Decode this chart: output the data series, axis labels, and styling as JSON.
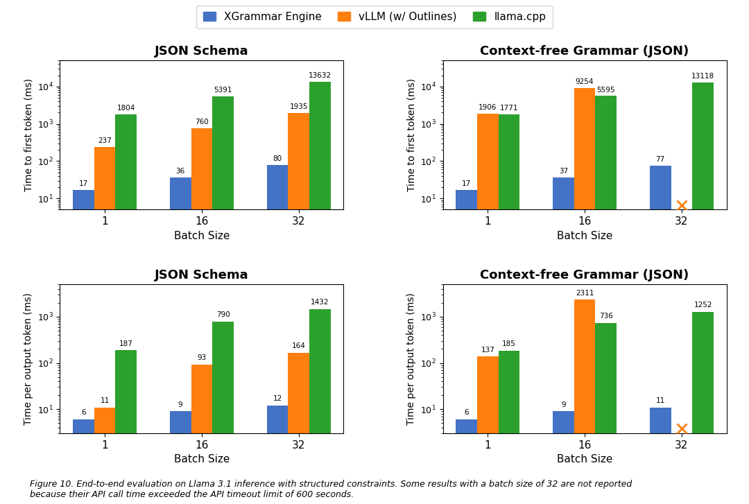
{
  "colors": {
    "xgrammar": "#4472C4",
    "vllm": "#FF7F0E",
    "llama": "#2CA02C"
  },
  "legend_labels": [
    "XGrammar Engine",
    "vLLM (w/ Outlines)",
    "llama.cpp"
  ],
  "batch_sizes": [
    1,
    16,
    32
  ],
  "batch_labels": [
    "1",
    "16",
    "32"
  ],
  "subplots": [
    {
      "title": "JSON Schema",
      "ylabel": "Time to first token (ms)",
      "row": 0,
      "col": 0,
      "xgrammar": [
        17,
        36,
        80
      ],
      "vllm": [
        237,
        760,
        1935
      ],
      "llama": [
        1804,
        5391,
        13632
      ],
      "vllm_missing": [
        false,
        false,
        false
      ],
      "llama_missing": [
        false,
        false,
        false
      ],
      "ylim": [
        5,
        50000
      ]
    },
    {
      "title": "Context-free Grammar (JSON)",
      "ylabel": "Time to first token (ms)",
      "row": 0,
      "col": 1,
      "xgrammar": [
        17,
        37,
        77
      ],
      "vllm": [
        1906,
        9254,
        null
      ],
      "llama": [
        1771,
        5595,
        13118
      ],
      "vllm_missing": [
        false,
        false,
        true
      ],
      "llama_missing": [
        false,
        false,
        false
      ],
      "ylim": [
        5,
        50000
      ]
    },
    {
      "title": "JSON Schema",
      "ylabel": "Time per output token (ms)",
      "row": 1,
      "col": 0,
      "xgrammar": [
        6,
        9,
        12
      ],
      "vllm": [
        11,
        93,
        164
      ],
      "llama": [
        187,
        790,
        1432
      ],
      "vllm_missing": [
        false,
        false,
        false
      ],
      "llama_missing": [
        false,
        false,
        false
      ],
      "ylim": [
        3,
        5000
      ]
    },
    {
      "title": "Context-free Grammar (JSON)",
      "ylabel": "Time per output token (ms)",
      "row": 1,
      "col": 1,
      "xgrammar": [
        6,
        9,
        11
      ],
      "vllm": [
        137,
        2311,
        null
      ],
      "llama": [
        185,
        736,
        1252
      ],
      "vllm_missing": [
        false,
        false,
        true
      ],
      "llama_missing": [
        false,
        false,
        false
      ],
      "ylim": [
        3,
        5000
      ]
    }
  ],
  "figure_caption": "Figure 10. End-to-end evaluation on Llama 3.1 inference with structured constraints. Some results with a batch size of 32 are not reported\nbecause their API call time exceeded the API timeout limit of 600 seconds.",
  "background_color": "#ffffff"
}
